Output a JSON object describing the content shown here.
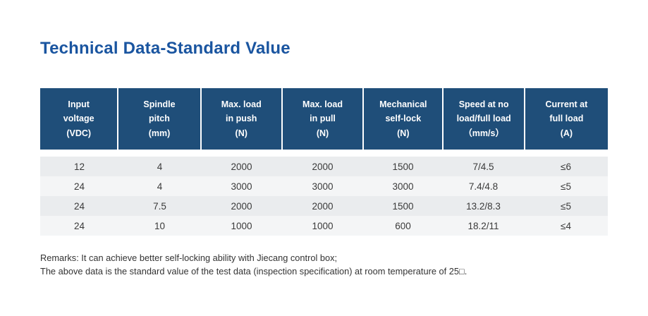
{
  "page": {
    "title": "Technical Data-Standard Value"
  },
  "colors": {
    "title_blue": "#1a55a0",
    "header_bg": "#1f4e79",
    "header_text": "#ffffff",
    "row_even": "#eaecee",
    "row_odd": "#f4f5f6",
    "body_text": "#3a3a3a"
  },
  "table": {
    "headers": [
      [
        "Input",
        "voltage",
        "(VDC)"
      ],
      [
        "Spindle",
        "pitch",
        "(mm)"
      ],
      [
        "Max. load",
        "in push",
        "(N)"
      ],
      [
        "Max. load",
        "in pull",
        "(N)"
      ],
      [
        "Mechanical",
        "self-lock",
        "(N)"
      ],
      [
        "Speed at no",
        "load/full load",
        "（mm/s）"
      ],
      [
        "Current at",
        "full load",
        "(A)"
      ]
    ],
    "rows": [
      [
        "12",
        "4",
        "2000",
        "2000",
        "1500",
        "7/4.5",
        "≤6"
      ],
      [
        "24",
        "4",
        "3000",
        "3000",
        "3000",
        "7.4/4.8",
        "≤5"
      ],
      [
        "24",
        "7.5",
        "2000",
        "2000",
        "1500",
        "13.2/8.3",
        "≤5"
      ],
      [
        "24",
        "10",
        "1000",
        "1000",
        "600",
        "18.2/11",
        "≤4"
      ]
    ]
  },
  "remarks": {
    "line1": "Remarks: It can achieve better self-locking ability with Jiecang control box;",
    "line2": "The above data is the standard value of the test data (inspection specification) at room temperature of 25□."
  }
}
